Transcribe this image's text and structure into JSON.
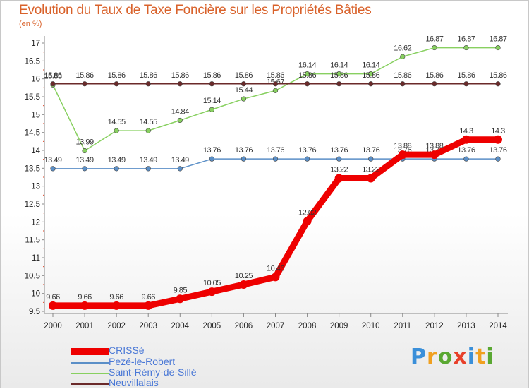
{
  "header": {
    "title": "Evolution du Taux de Taxe Foncière sur les Propriétés Bâties",
    "unit": "(en %)"
  },
  "logo": {
    "text": "Proxiti",
    "letters": [
      "P",
      "r",
      "o",
      "x",
      "i",
      "t",
      "i"
    ],
    "colors": [
      "#3a8fd9",
      "#f0a020",
      "#5aa832",
      "#e8402a",
      "#3a8fd9",
      "#f0a020",
      "#5aa832"
    ]
  },
  "chart_data": {
    "type": "line",
    "title": "Evolution du Taux de Taxe Foncière sur les Propriétés Bâties",
    "ylabel": "(en %)",
    "xlabel": "",
    "ylim": [
      9.5,
      17
    ],
    "yticks": [
      "9.5",
      "10",
      "10.5",
      "11",
      "11.5",
      "12",
      "12.5",
      "13",
      "13.5",
      "14",
      "14.5",
      "15",
      "15.5",
      "16",
      "16.5",
      "17"
    ],
    "categories": [
      "2000",
      "2001",
      "2002",
      "2003",
      "2004",
      "2005",
      "2006",
      "2007",
      "2008",
      "2009",
      "2010",
      "2011",
      "2012",
      "2013",
      "2014"
    ],
    "grid": false,
    "legend": "bottom-left",
    "series": [
      {
        "name": "Pezé-le-Robert",
        "color": "#5b8fc7",
        "width": 1.5,
        "values": [
          13.49,
          13.49,
          13.49,
          13.49,
          13.49,
          13.76,
          13.76,
          13.76,
          13.76,
          13.76,
          13.76,
          13.76,
          13.76,
          13.76,
          13.76
        ],
        "labels": [
          "13.49",
          "13.49",
          "13.49",
          "13.49",
          "13.49",
          "13.76",
          "13.76",
          "13.76",
          "13.76",
          "13.76",
          "13.76",
          "13.76",
          "13.76",
          "13.76",
          "13.76"
        ]
      },
      {
        "name": "Saint-Rémy-de-Sillé",
        "color": "#88d060",
        "width": 1.5,
        "values": [
          15.83,
          13.99,
          14.55,
          14.55,
          14.84,
          15.14,
          15.44,
          15.67,
          16.14,
          16.14,
          16.14,
          16.62,
          16.87,
          16.87,
          16.87
        ],
        "labels": [
          "15.83",
          "13.99",
          "14.55",
          "14.55",
          "14.84",
          "15.14",
          "15.44",
          "15.67",
          "16.14",
          "16.14",
          "16.14",
          "16.62",
          "16.87",
          "16.87",
          "16.87"
        ]
      },
      {
        "name": "Neuvillalais",
        "color": "#6b2a2a",
        "width": 1.5,
        "values": [
          15.86,
          15.86,
          15.86,
          15.86,
          15.86,
          15.86,
          15.86,
          15.86,
          15.86,
          15.86,
          15.86,
          15.86,
          15.86,
          15.86,
          15.86
        ],
        "labels": [
          "15.86",
          "15.86",
          "15.86",
          "15.86",
          "15.86",
          "15.86",
          "15.86",
          "15.86",
          "15.86",
          "15.86",
          "15.86",
          "15.86",
          "15.86",
          "15.86",
          "15.86"
        ]
      },
      {
        "name": "CRISSé",
        "color": "#ee0000",
        "width": 9,
        "values": [
          9.66,
          9.66,
          9.66,
          9.66,
          9.85,
          10.05,
          10.25,
          10.46,
          12.02,
          13.22,
          13.22,
          13.88,
          13.88,
          14.3,
          14.3
        ],
        "labels": [
          "9.66",
          "9.66",
          "9.66",
          "9.66",
          "9.85",
          "10.05",
          "10.25",
          "10.46",
          "12.02",
          "13.22",
          "13.22",
          "13.88",
          "13.88",
          "14.3",
          "14.3"
        ]
      }
    ],
    "legend_order": [
      "CRISSé",
      "Pezé-le-Robert",
      "Saint-Rémy-de-Sillé",
      "Neuvillalais"
    ]
  }
}
